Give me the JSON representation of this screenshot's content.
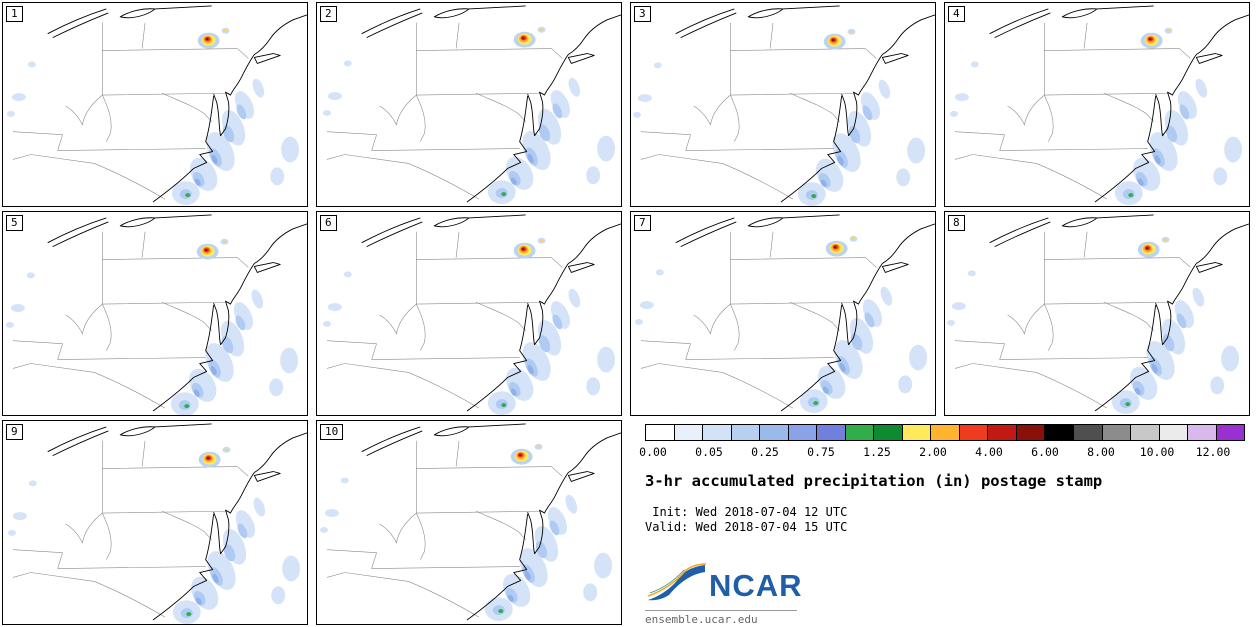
{
  "panels": [
    {
      "label": "1"
    },
    {
      "label": "2"
    },
    {
      "label": "3"
    },
    {
      "label": "4"
    },
    {
      "label": "5"
    },
    {
      "label": "6"
    },
    {
      "label": "7"
    },
    {
      "label": "8"
    },
    {
      "label": "9"
    },
    {
      "label": "10"
    }
  ],
  "colorbar": {
    "ticks": [
      "0.00",
      "0.05",
      "0.25",
      "0.75",
      "1.25",
      "2.00",
      "4.00",
      "6.00",
      "8.00",
      "10.00",
      "12.00"
    ],
    "colors": [
      "#ffffff",
      "#e8f1fb",
      "#d2e3f7",
      "#b6d0f2",
      "#9abaec",
      "#8aa2e8",
      "#7280dd",
      "#2fae4a",
      "#0e8a30",
      "#ffe95c",
      "#ffb32e",
      "#f03b20",
      "#c21a12",
      "#8a100a",
      "#000000",
      "#4f4f4f",
      "#8c8c8c",
      "#c8c8c8",
      "#ebebeb",
      "#d9b8ec",
      "#9a30d0"
    ],
    "units": "in"
  },
  "title": "3-hr accumulated precipitation (in) postage stamp",
  "init_line": " Init: Wed 2018-07-04 12 UTC",
  "valid_line": "Valid: Wed 2018-07-04 15 UTC",
  "logo": {
    "text": "NCAR",
    "url_text": "ensemble.ucar.edu",
    "brand_color": "#1f5fa9"
  }
}
